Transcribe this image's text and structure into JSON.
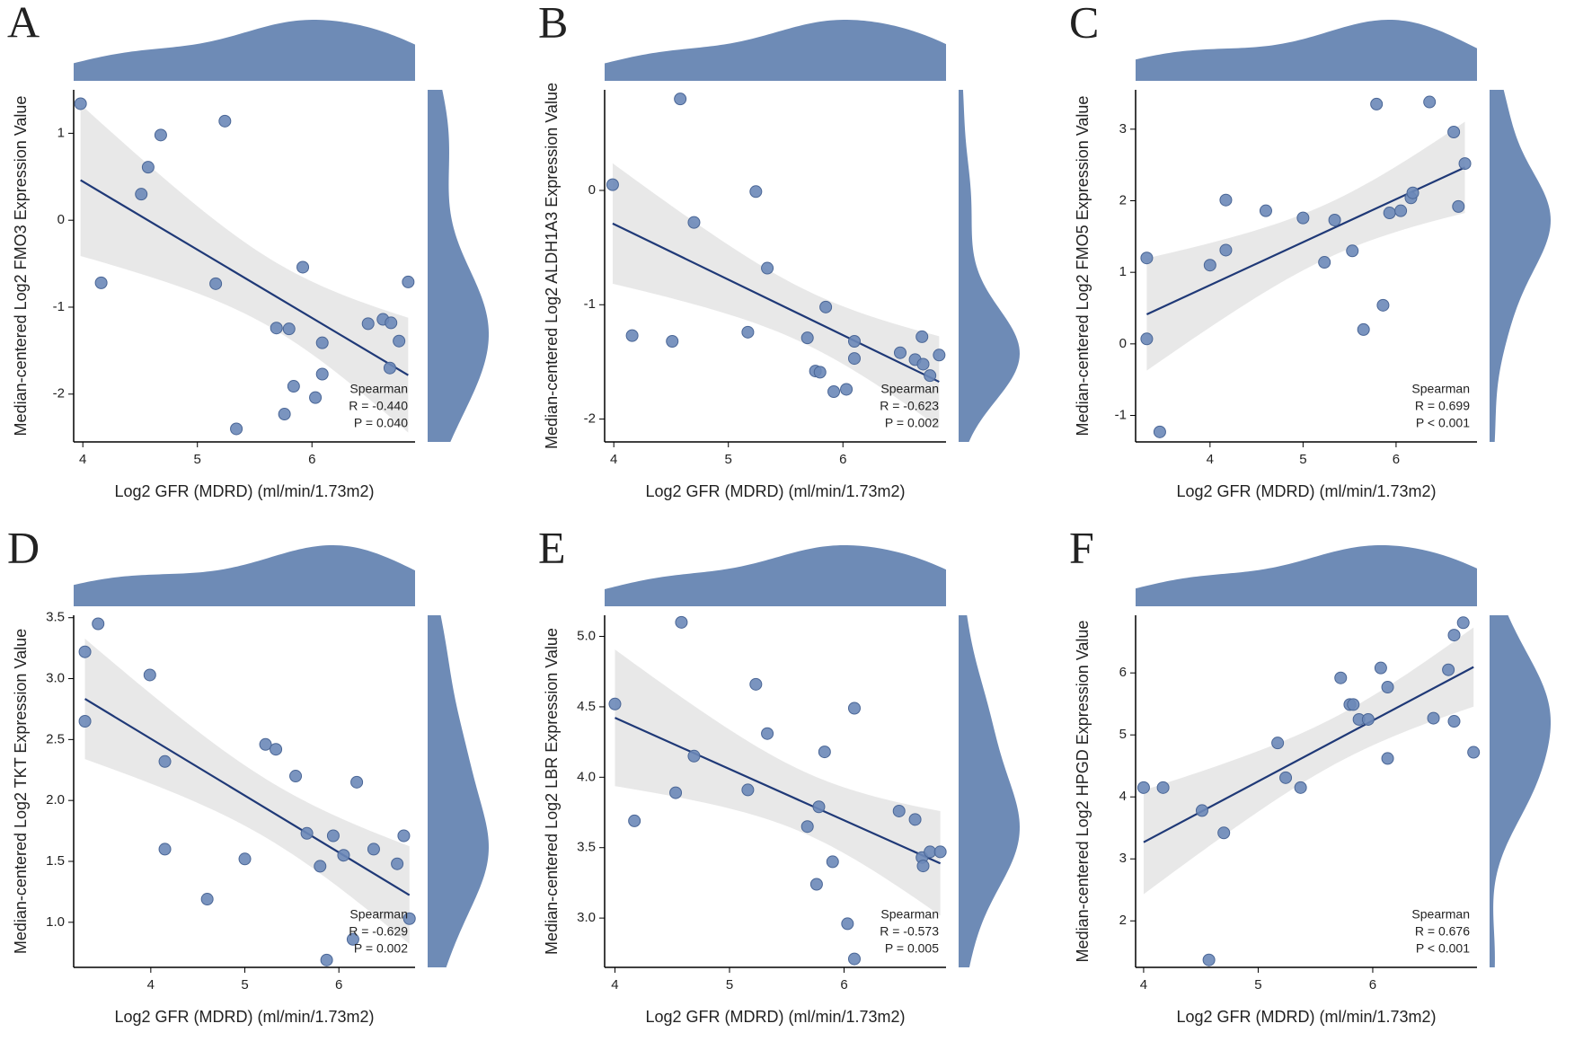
{
  "chart_data": [
    {
      "type": "scatter",
      "panel": "A",
      "x_label": "Log2 GFR (MDRD) (ml/min/1.73m2)",
      "y_label": "Median-centered Log2 FMO3 Expression Value",
      "x": [
        3.98,
        4.16,
        4.51,
        4.57,
        4.68,
        5.24,
        5.16,
        5.69,
        5.8,
        5.92,
        5.84,
        5.76,
        5.34,
        6.03,
        6.09,
        6.09,
        6.49,
        6.62,
        6.69,
        6.76,
        6.68,
        6.84
      ],
      "y": [
        1.34,
        -0.72,
        0.3,
        0.61,
        0.98,
        1.14,
        -0.73,
        -1.24,
        -1.25,
        -0.54,
        -1.91,
        -2.23,
        -2.4,
        -2.04,
        -1.41,
        -1.77,
        -1.19,
        -1.14,
        -1.18,
        -1.39,
        -1.7,
        -0.71
      ],
      "xlim": [
        3.92,
        6.9
      ],
      "ylim": [
        -2.55,
        1.5
      ],
      "xticks": [
        4,
        5,
        6
      ],
      "yticks": [
        -2,
        -1,
        0,
        1
      ],
      "annotation": {
        "method": "Spearman",
        "r": "R = -0.440",
        "p": "P = 0.040"
      },
      "color": "#6b88b8",
      "line_color": "#1f3977",
      "density_color": "#6e8bb6"
    },
    {
      "type": "scatter",
      "panel": "B",
      "x_label": "Log2 GFR (MDRD) (ml/min/1.73m2)",
      "y_label": "Median-centered Log2 ALDH1A3 Expression Value",
      "x": [
        3.99,
        4.16,
        4.51,
        4.58,
        4.7,
        5.17,
        5.24,
        5.34,
        5.69,
        5.76,
        5.8,
        5.85,
        5.92,
        6.03,
        6.1,
        6.1,
        6.5,
        6.63,
        6.69,
        6.7,
        6.76,
        6.84
      ],
      "y": [
        0.05,
        -1.27,
        -1.32,
        0.8,
        -0.28,
        -1.24,
        -0.01,
        -0.68,
        -1.29,
        -1.58,
        -1.59,
        -1.02,
        -1.76,
        -1.74,
        -1.47,
        -1.32,
        -1.42,
        -1.48,
        -1.28,
        -1.52,
        -1.62,
        -1.44
      ],
      "xlim": [
        3.92,
        6.9
      ],
      "ylim": [
        -2.2,
        0.88
      ],
      "xticks": [
        4,
        5,
        6
      ],
      "yticks": [
        -2,
        -1,
        0
      ],
      "annotation": {
        "method": "Spearman",
        "r": "R = -0.623",
        "p": "P = 0.002"
      },
      "color": "#6b88b8",
      "line_color": "#1f3977",
      "density_color": "#6e8bb6"
    },
    {
      "type": "scatter",
      "panel": "C",
      "x_label": "Log2 GFR (MDRD) (ml/min/1.73m2)",
      "y_label": "Median-centered Log2 FMO5 Expression Value",
      "x": [
        3.32,
        3.32,
        3.46,
        4.0,
        4.17,
        4.17,
        4.6,
        5.0,
        5.23,
        5.34,
        5.53,
        5.65,
        5.79,
        5.86,
        5.93,
        6.05,
        6.16,
        6.18,
        6.36,
        6.62,
        6.67,
        6.74
      ],
      "y": [
        1.2,
        0.07,
        -1.23,
        1.1,
        1.31,
        2.01,
        1.86,
        1.76,
        1.14,
        1.73,
        1.3,
        0.2,
        3.35,
        0.54,
        1.83,
        1.86,
        2.04,
        2.11,
        3.38,
        2.96,
        1.92,
        2.52
      ],
      "xlim": [
        3.2,
        6.87
      ],
      "ylim": [
        -1.37,
        3.55
      ],
      "xticks": [
        4,
        5,
        6
      ],
      "yticks": [
        -1,
        0,
        1,
        2,
        3
      ],
      "annotation": {
        "method": "Spearman",
        "r": "R = 0.699",
        "p": "P < 0.001"
      },
      "color": "#6b88b8",
      "line_color": "#1f3977",
      "density_color": "#6e8bb6"
    },
    {
      "type": "scatter",
      "panel": "D",
      "x_label": "Log2 GFR (MDRD) (ml/min/1.73m2)",
      "y_label": "Median-centered Log2 TKT Expression Value",
      "x": [
        3.3,
        3.44,
        3.3,
        3.99,
        4.15,
        4.15,
        4.6,
        5.0,
        5.22,
        5.33,
        5.54,
        5.66,
        5.8,
        5.94,
        6.05,
        6.15,
        6.19,
        5.87,
        6.37,
        6.62,
        6.69,
        6.75
      ],
      "y": [
        3.22,
        3.45,
        2.65,
        3.03,
        2.32,
        1.6,
        1.19,
        1.52,
        2.46,
        2.42,
        2.2,
        1.73,
        1.46,
        1.71,
        1.55,
        0.86,
        2.15,
        0.69,
        1.6,
        1.48,
        1.71,
        1.03
      ],
      "xlim": [
        3.18,
        6.81
      ],
      "ylim": [
        0.63,
        3.52
      ],
      "xticks": [
        4,
        5,
        6
      ],
      "yticks": [
        {
          "value": 1,
          "label": "1.0"
        },
        1.5,
        {
          "value": 2,
          "label": "2.0"
        },
        2.5,
        {
          "value": 3,
          "label": "3.0"
        },
        3.5
      ],
      "annotation": {
        "method": "Spearman",
        "r": "R = -0.629",
        "p": "P = 0.002"
      },
      "color": "#6b88b8",
      "line_color": "#1f3977",
      "density_color": "#6e8bb6"
    },
    {
      "type": "scatter",
      "panel": "E",
      "x_label": "Log2 GFR (MDRD) (ml/min/1.73m2)",
      "y_label": "Median-centered Log2 LBR Expression Value",
      "x": [
        4.0,
        4.17,
        4.53,
        4.58,
        4.69,
        5.16,
        5.23,
        5.33,
        5.68,
        5.76,
        5.78,
        5.83,
        5.9,
        6.03,
        6.09,
        6.09,
        6.48,
        6.62,
        6.68,
        6.69,
        6.75,
        6.84
      ],
      "y": [
        4.52,
        3.69,
        3.89,
        5.1,
        4.15,
        3.91,
        4.66,
        4.31,
        3.65,
        3.24,
        3.79,
        4.18,
        3.4,
        2.96,
        4.49,
        2.71,
        3.76,
        3.7,
        3.43,
        3.37,
        3.47,
        3.47
      ],
      "xlim": [
        3.91,
        6.89
      ],
      "ylim": [
        2.65,
        5.15
      ],
      "xticks": [
        4,
        5,
        6
      ],
      "yticks": [
        {
          "value": 3,
          "label": "3.0"
        },
        3.5,
        {
          "value": 4,
          "label": "4.0"
        },
        4.5,
        {
          "value": 5,
          "label": "5.0"
        }
      ],
      "annotation": {
        "method": "Spearman",
        "r": "R = -0.573",
        "p": "P = 0.005"
      },
      "color": "#6b88b8",
      "line_color": "#1f3977",
      "density_color": "#6e8bb6"
    },
    {
      "type": "scatter",
      "panel": "F",
      "x_label": "Log2 GFR (MDRD) (ml/min/1.73m2)",
      "y_label": "Median-centered Log2 HPGD Expression Value",
      "x": [
        4.0,
        4.17,
        4.51,
        4.57,
        4.7,
        5.17,
        5.24,
        5.37,
        5.72,
        5.8,
        5.83,
        5.88,
        5.96,
        6.07,
        6.13,
        6.13,
        6.53,
        6.66,
        6.71,
        6.71,
        6.79,
        6.88
      ],
      "y": [
        4.15,
        4.15,
        3.78,
        1.37,
        3.42,
        4.87,
        4.31,
        4.15,
        5.92,
        5.49,
        5.49,
        5.25,
        5.25,
        6.08,
        5.77,
        4.62,
        5.27,
        6.05,
        6.61,
        5.22,
        6.81,
        4.72
      ],
      "xlim": [
        3.93,
        6.91
      ],
      "ylim": [
        1.25,
        6.93
      ],
      "xticks": [
        4,
        5,
        6
      ],
      "yticks": [
        2,
        3,
        4,
        5,
        6
      ],
      "annotation": {
        "method": "Spearman",
        "r": "R = 0.676",
        "p": "P < 0.001"
      },
      "color": "#6b88b8",
      "line_color": "#1f3977",
      "density_color": "#6e8bb6"
    }
  ]
}
